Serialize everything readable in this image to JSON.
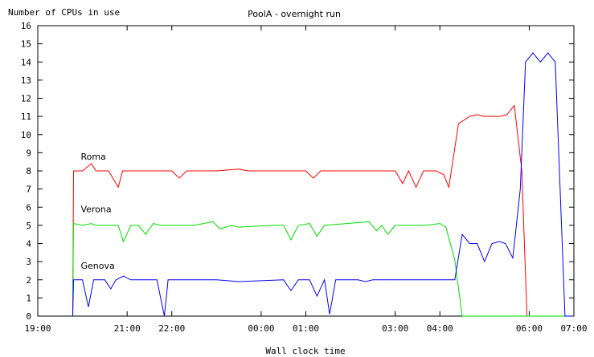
{
  "chart_data": {
    "type": "line",
    "title": "PoolA - overnight run",
    "ylabel": "Number of CPUs in use",
    "xlabel": "Wall clock time",
    "xlim": [
      "19:00",
      "07:00"
    ],
    "ylim": [
      0,
      16
    ],
    "x_ticks": [
      "19:00",
      "21:00",
      "22:00",
      "00:00",
      "01:00",
      "03:00",
      "04:00",
      "06:00",
      "07:00"
    ],
    "y_ticks": [
      "0",
      "1",
      "2",
      "3",
      "4",
      "5",
      "6",
      "7",
      "8",
      "9",
      "10",
      "11",
      "12",
      "13",
      "14",
      "15",
      "16"
    ],
    "grid": false,
    "series": [
      {
        "name": "Roma",
        "color": "#ff0000",
        "points": [
          [
            "19:47",
            0
          ],
          [
            "19:48",
            8
          ],
          [
            "20:00",
            8
          ],
          [
            "20:12",
            8.4
          ],
          [
            "20:18",
            8
          ],
          [
            "20:35",
            8
          ],
          [
            "20:48",
            7.1
          ],
          [
            "20:54",
            8
          ],
          [
            "21:30",
            8
          ],
          [
            "22:00",
            8
          ],
          [
            "22:10",
            7.6
          ],
          [
            "22:20",
            8
          ],
          [
            "23:00",
            8
          ],
          [
            "23:30",
            8.1
          ],
          [
            "23:42",
            8
          ],
          [
            "01:00",
            8
          ],
          [
            "01:10",
            7.6
          ],
          [
            "01:20",
            8
          ],
          [
            "02:00",
            8
          ],
          [
            "03:00",
            8
          ],
          [
            "03:10",
            7.3
          ],
          [
            "03:18",
            8
          ],
          [
            "03:28",
            7.1
          ],
          [
            "03:38",
            8
          ],
          [
            "03:55",
            8
          ],
          [
            "04:05",
            7.8
          ],
          [
            "04:12",
            7.1
          ],
          [
            "04:25",
            10.6
          ],
          [
            "04:40",
            11
          ],
          [
            "04:50",
            11.1
          ],
          [
            "05:00",
            11
          ],
          [
            "05:20",
            11
          ],
          [
            "05:30",
            11.1
          ],
          [
            "05:40",
            11.6
          ],
          [
            "05:50",
            8
          ],
          [
            "05:57",
            0
          ],
          [
            "06:50",
            0
          ]
        ]
      },
      {
        "name": "Verona",
        "color": "#00dd00",
        "points": [
          [
            "19:47",
            1
          ],
          [
            "19:48",
            5.1
          ],
          [
            "20:00",
            5
          ],
          [
            "20:12",
            5.1
          ],
          [
            "20:18",
            5
          ],
          [
            "20:48",
            5
          ],
          [
            "20:55",
            4.1
          ],
          [
            "21:05",
            5
          ],
          [
            "21:15",
            5
          ],
          [
            "21:25",
            4.5
          ],
          [
            "21:35",
            5.1
          ],
          [
            "21:45",
            5
          ],
          [
            "22:30",
            5
          ],
          [
            "22:55",
            5.2
          ],
          [
            "23:05",
            4.8
          ],
          [
            "23:20",
            5
          ],
          [
            "23:30",
            4.9
          ],
          [
            "00:15",
            5
          ],
          [
            "00:30",
            5
          ],
          [
            "00:40",
            4.2
          ],
          [
            "00:50",
            5
          ],
          [
            "01:05",
            5.1
          ],
          [
            "01:15",
            4.4
          ],
          [
            "01:25",
            5
          ],
          [
            "02:25",
            5.2
          ],
          [
            "02:35",
            4.7
          ],
          [
            "02:42",
            5
          ],
          [
            "02:50",
            4.5
          ],
          [
            "03:00",
            5
          ],
          [
            "03:40",
            5
          ],
          [
            "04:00",
            5.1
          ],
          [
            "04:08",
            4.9
          ],
          [
            "04:20",
            3.1
          ],
          [
            "04:30",
            0
          ],
          [
            "06:50",
            0
          ]
        ]
      },
      {
        "name": "Genova",
        "color": "#0000ff",
        "points": [
          [
            "19:47",
            0
          ],
          [
            "19:48",
            2
          ],
          [
            "20:00",
            2
          ],
          [
            "20:08",
            0.5
          ],
          [
            "20:15",
            2
          ],
          [
            "20:30",
            2
          ],
          [
            "20:38",
            1.5
          ],
          [
            "20:45",
            2
          ],
          [
            "20:55",
            2.2
          ],
          [
            "21:05",
            2
          ],
          [
            "21:40",
            2
          ],
          [
            "21:50",
            0
          ],
          [
            "21:55",
            2
          ],
          [
            "22:00",
            2
          ],
          [
            "23:00",
            2
          ],
          [
            "23:30",
            1.9
          ],
          [
            "00:30",
            2
          ],
          [
            "00:40",
            1.4
          ],
          [
            "00:50",
            2
          ],
          [
            "01:05",
            2
          ],
          [
            "01:15",
            1.1
          ],
          [
            "01:25",
            2
          ],
          [
            "01:32",
            0.1
          ],
          [
            "01:40",
            2
          ],
          [
            "02:10",
            2
          ],
          [
            "02:20",
            1.9
          ],
          [
            "02:30",
            2
          ],
          [
            "03:30",
            2
          ],
          [
            "04:20",
            2
          ],
          [
            "04:30",
            4.5
          ],
          [
            "04:40",
            4
          ],
          [
            "04:50",
            4
          ],
          [
            "05:00",
            3
          ],
          [
            "05:10",
            4
          ],
          [
            "05:20",
            4.1
          ],
          [
            "05:28",
            4
          ],
          [
            "05:38",
            3.2
          ],
          [
            "05:48",
            7
          ],
          [
            "05:55",
            14
          ],
          [
            "06:05",
            14.5
          ],
          [
            "06:15",
            14
          ],
          [
            "06:25",
            14.5
          ],
          [
            "06:35",
            14
          ],
          [
            "06:48",
            0
          ],
          [
            "06:58",
            0
          ]
        ]
      }
    ]
  }
}
